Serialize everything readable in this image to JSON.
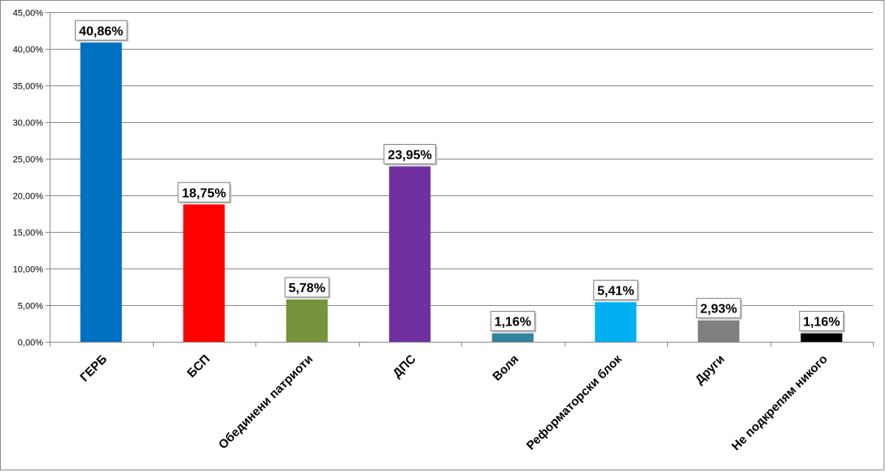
{
  "chart_data": {
    "type": "bar",
    "categories": [
      "ГЕРБ",
      "БСП",
      "Обединени патриоти",
      "ДПС",
      "Воля",
      "Реформаторски блок",
      "Други",
      "Не подкрепям никого"
    ],
    "values": [
      40.86,
      18.75,
      5.78,
      23.95,
      1.16,
      5.41,
      2.93,
      1.16
    ],
    "data_labels": [
      "40,86%",
      "18,75%",
      "5,78%",
      "23,95%",
      "1,16%",
      "5,41%",
      "2,93%",
      "1,16%"
    ],
    "colors": [
      "#0070c0",
      "#ff0000",
      "#77933c",
      "#7030a0",
      "#31849b",
      "#00b0f0",
      "#7f7f7f",
      "#000000"
    ],
    "ylim": [
      0,
      45
    ],
    "ytick_values": [
      0,
      5,
      10,
      15,
      20,
      25,
      30,
      35,
      40,
      45
    ],
    "ytick_labels": [
      "0,00%",
      "5,00%",
      "10,00%",
      "15,00%",
      "20,00%",
      "25,00%",
      "30,00%",
      "35,00%",
      "40,00%",
      "45,00%"
    ],
    "grid": true,
    "legend": "none"
  }
}
